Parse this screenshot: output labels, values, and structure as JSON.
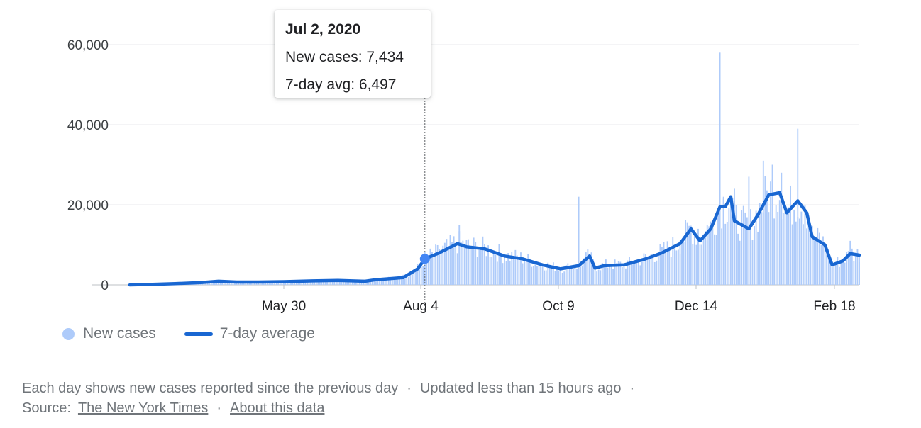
{
  "chart_data": {
    "type": "bar",
    "title": "",
    "xlabel": "",
    "ylabel": "",
    "ylim": [
      0,
      60000
    ],
    "yticks": [
      0,
      20000,
      40000,
      60000
    ],
    "ytick_labels": [
      "0",
      "20,000",
      "40,000",
      "60,000"
    ],
    "xtick_labels": [
      "May 30",
      "Aug 4",
      "Oct 9",
      "Dec 14",
      "Feb 18"
    ],
    "x_range": [
      "2020-01-21",
      "2021-02-27"
    ],
    "grid": true,
    "legend_position": "bottom-left",
    "colors": {
      "bars": "#aecbfa",
      "line": "#1967d2"
    },
    "series": [
      {
        "name": "New cases",
        "kind": "bar",
        "points": [
          [
            "2020-01-21",
            0
          ],
          [
            "2020-02-01",
            200
          ],
          [
            "2020-02-15",
            300
          ],
          [
            "2020-03-01",
            500
          ],
          [
            "2020-03-15",
            800
          ],
          [
            "2020-04-01",
            1000
          ],
          [
            "2020-04-15",
            900
          ],
          [
            "2020-05-01",
            900
          ],
          [
            "2020-05-15",
            1000
          ],
          [
            "2020-05-30",
            1100
          ],
          [
            "2020-06-10",
            1500
          ],
          [
            "2020-06-20",
            2500
          ],
          [
            "2020-06-28",
            5000
          ],
          [
            "2020-07-02",
            7434
          ],
          [
            "2020-07-10",
            9000
          ],
          [
            "2020-07-18",
            10500
          ],
          [
            "2020-07-21",
            15000
          ],
          [
            "2020-07-25",
            10000
          ],
          [
            "2020-08-04",
            9000
          ],
          [
            "2020-08-10",
            7500
          ],
          [
            "2020-08-20",
            6500
          ],
          [
            "2020-09-01",
            5500
          ],
          [
            "2020-09-10",
            4500
          ],
          [
            "2020-09-20",
            4000
          ],
          [
            "2020-09-25",
            22000
          ],
          [
            "2020-09-30",
            7500
          ],
          [
            "2020-10-09",
            5000
          ],
          [
            "2020-10-20",
            5000
          ],
          [
            "2020-11-01",
            6500
          ],
          [
            "2020-11-10",
            8500
          ],
          [
            "2020-11-20",
            11000
          ],
          [
            "2020-11-30",
            14000
          ],
          [
            "2020-12-05",
            15000
          ],
          [
            "2020-12-12",
            58000
          ],
          [
            "2020-12-14",
            22000
          ],
          [
            "2020-12-20",
            24000
          ],
          [
            "2020-12-28",
            27000
          ],
          [
            "2021-01-05",
            31000
          ],
          [
            "2021-01-10",
            30000
          ],
          [
            "2021-01-15",
            28000
          ],
          [
            "2021-01-20",
            22000
          ],
          [
            "2021-01-24",
            39000
          ],
          [
            "2021-01-28",
            20000
          ],
          [
            "2021-02-05",
            13000
          ],
          [
            "2021-02-12",
            5000
          ],
          [
            "2021-02-18",
            6000
          ],
          [
            "2021-02-22",
            11000
          ],
          [
            "2021-02-27",
            7000
          ]
        ]
      },
      {
        "name": "7-day average",
        "kind": "line",
        "points": [
          [
            "2020-01-21",
            0
          ],
          [
            "2020-02-01",
            100
          ],
          [
            "2020-02-15",
            300
          ],
          [
            "2020-03-01",
            600
          ],
          [
            "2020-03-10",
            900
          ],
          [
            "2020-03-20",
            700
          ],
          [
            "2020-04-01",
            700
          ],
          [
            "2020-04-15",
            800
          ],
          [
            "2020-05-01",
            1000
          ],
          [
            "2020-05-15",
            1100
          ],
          [
            "2020-05-30",
            900
          ],
          [
            "2020-06-05",
            1300
          ],
          [
            "2020-06-20",
            1800
          ],
          [
            "2020-06-28",
            4000
          ],
          [
            "2020-07-02",
            6497
          ],
          [
            "2020-07-10",
            8000
          ],
          [
            "2020-07-20",
            10300
          ],
          [
            "2020-07-25",
            9500
          ],
          [
            "2020-08-04",
            9000
          ],
          [
            "2020-08-15",
            7200
          ],
          [
            "2020-08-25",
            6500
          ],
          [
            "2020-09-05",
            5000
          ],
          [
            "2020-09-15",
            4000
          ],
          [
            "2020-09-25",
            4800
          ],
          [
            "2020-10-01",
            7200
          ],
          [
            "2020-10-04",
            4200
          ],
          [
            "2020-10-09",
            4800
          ],
          [
            "2020-10-20",
            5000
          ],
          [
            "2020-11-01",
            6500
          ],
          [
            "2020-11-10",
            8000
          ],
          [
            "2020-11-20",
            10300
          ],
          [
            "2020-11-26",
            14000
          ],
          [
            "2020-12-01",
            11000
          ],
          [
            "2020-12-07",
            14000
          ],
          [
            "2020-12-12",
            19500
          ],
          [
            "2020-12-15",
            19500
          ],
          [
            "2020-12-18",
            22000
          ],
          [
            "2020-12-20",
            16000
          ],
          [
            "2020-12-28",
            14000
          ],
          [
            "2021-01-02",
            17500
          ],
          [
            "2021-01-08",
            22500
          ],
          [
            "2021-01-14",
            23000
          ],
          [
            "2021-01-18",
            18000
          ],
          [
            "2021-01-24",
            21000
          ],
          [
            "2021-01-29",
            18000
          ],
          [
            "2021-02-01",
            12000
          ],
          [
            "2021-02-08",
            10000
          ],
          [
            "2021-02-12",
            5000
          ],
          [
            "2021-02-18",
            6000
          ],
          [
            "2021-02-22",
            7800
          ],
          [
            "2021-02-27",
            7434
          ]
        ]
      }
    ]
  },
  "tooltip": {
    "date": "Jul 2, 2020",
    "new_cases": "New cases: 7,434",
    "avg": "7-day avg: 6,497",
    "marker_date": "2020-07-02",
    "marker_value": 6497
  },
  "legend": {
    "new_cases_label": "New cases",
    "avg_label": "7-day average"
  },
  "footer": {
    "line1_part1": "Each day shows new cases reported since the previous day",
    "separator": "·",
    "line1_part2": "Updated less than 15 hours ago",
    "source_label": "Source:",
    "source_link": "The New York Times",
    "about_link": "About this data"
  }
}
